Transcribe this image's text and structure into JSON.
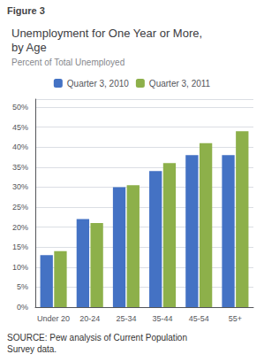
{
  "chart_data": {
    "type": "bar",
    "title": "Unemployment for One Year or More,\nby Age",
    "subtitle": "Percent of Total Unemployed",
    "annotations": [
      "Figure 3",
      "SOURCE: Pew analysis of Current Population\nSurvey data."
    ],
    "categories": [
      "Under 20",
      "20-24",
      "25-34",
      "35-44",
      "45-54",
      "55+"
    ],
    "series": [
      {
        "name": "Quarter 3, 2010",
        "color": "#4472C4",
        "values": [
          13,
          22,
          30,
          34,
          38,
          38
        ]
      },
      {
        "name": "Quarter 3, 2011",
        "color": "#8DB04A",
        "values": [
          14,
          21,
          30.5,
          36,
          41,
          44
        ]
      }
    ],
    "ylim": [
      0,
      52
    ],
    "yticks": [
      {
        "value": 0,
        "label": "0%"
      },
      {
        "value": 5,
        "label": "5%"
      },
      {
        "value": 10,
        "label": "10%"
      },
      {
        "value": 15,
        "label": "15%"
      },
      {
        "value": 20,
        "label": "20%"
      },
      {
        "value": 25,
        "label": "25%"
      },
      {
        "value": 30,
        "label": "30%"
      },
      {
        "value": 35,
        "label": "35%"
      },
      {
        "value": 40,
        "label": "40%"
      },
      {
        "value": 45,
        "label": "45%"
      },
      {
        "value": 50,
        "label": "50%"
      }
    ],
    "grid": true,
    "legend": "top"
  }
}
